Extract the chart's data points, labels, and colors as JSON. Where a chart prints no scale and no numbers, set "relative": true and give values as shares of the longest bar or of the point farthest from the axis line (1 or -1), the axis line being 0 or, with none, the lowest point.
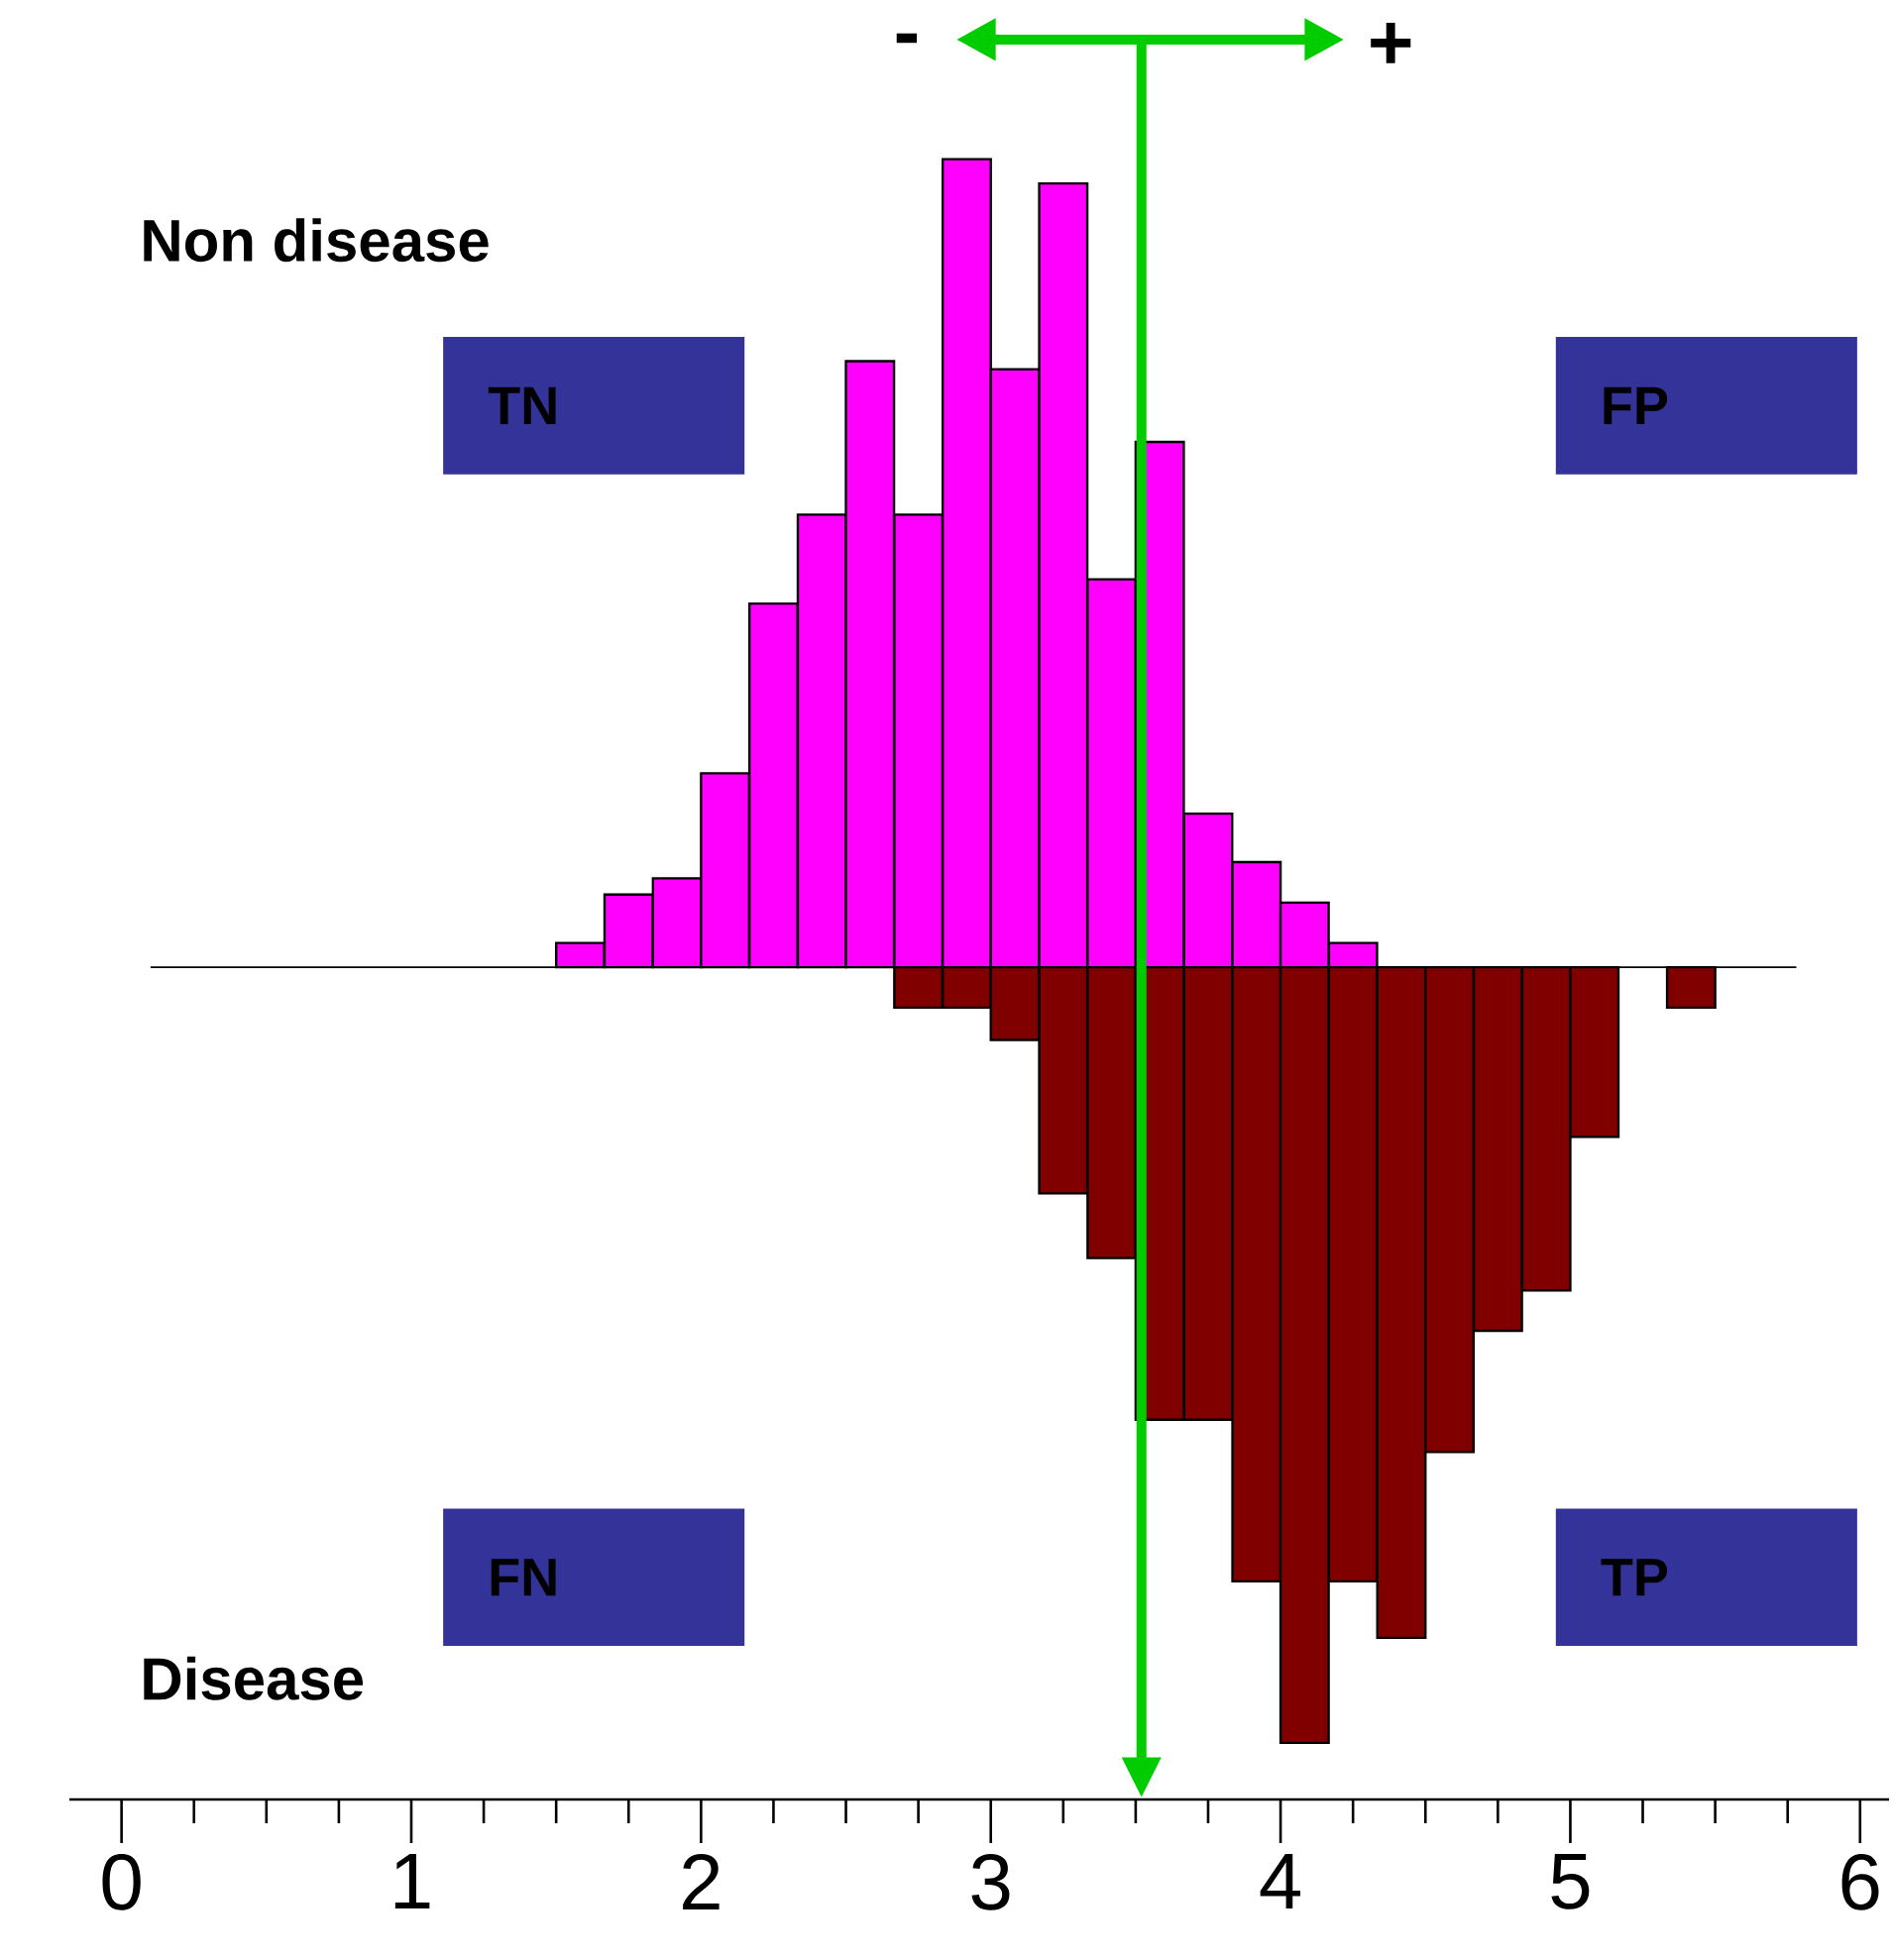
{
  "chart_data": {
    "type": "bar",
    "relative": true,
    "series": [
      {
        "color": "#ff00ff",
        "x": [
          1.583,
          1.75,
          1.917,
          2.083,
          2.25,
          2.417,
          2.583,
          2.75,
          2.917,
          3.083,
          3.25,
          3.417,
          3.583,
          3.75,
          3.917,
          4.083,
          4.25
        ],
        "values": [
          0.03,
          0.09,
          0.11,
          0.24,
          0.45,
          0.56,
          0.75,
          0.56,
          1,
          0.74,
          0.97,
          0.48,
          0.65,
          0.19,
          0.13,
          0.08,
          0.03
        ]
      },
      {
        "color": "#800000",
        "x": [
          2.75,
          2.917,
          3.083,
          3.25,
          3.417,
          3.583,
          3.75,
          3.917,
          4.083,
          4.25,
          4.417,
          4.583,
          4.75,
          4.917,
          5.083,
          5.417
        ],
        "values": [
          -0.05,
          -0.05,
          -0.09,
          -0.28,
          -0.36,
          -0.56,
          -0.56,
          -0.76,
          -0.96,
          -0.76,
          -0.83,
          -0.6,
          -0.45,
          -0.4,
          -0.21,
          -0.05
        ]
      }
    ],
    "xlim": [
      -0.18,
      6.1
    ],
    "xticks": [
      {
        "value": 0,
        "label": "0"
      },
      {
        "value": 1,
        "label": "1"
      },
      {
        "value": 2,
        "label": "2"
      },
      {
        "value": 3,
        "label": "3"
      },
      {
        "value": 4,
        "label": "4"
      },
      {
        "value": 5,
        "label": "5"
      },
      {
        "value": 6,
        "label": "6"
      }
    ],
    "ref_lines": [
      {
        "axis": "x",
        "value": 3.52,
        "color": "#00cc00"
      }
    ],
    "annotations": [
      "TN",
      "FP",
      "FN",
      "TP",
      "-",
      "+",
      "Non disease",
      "Disease"
    ]
  }
}
